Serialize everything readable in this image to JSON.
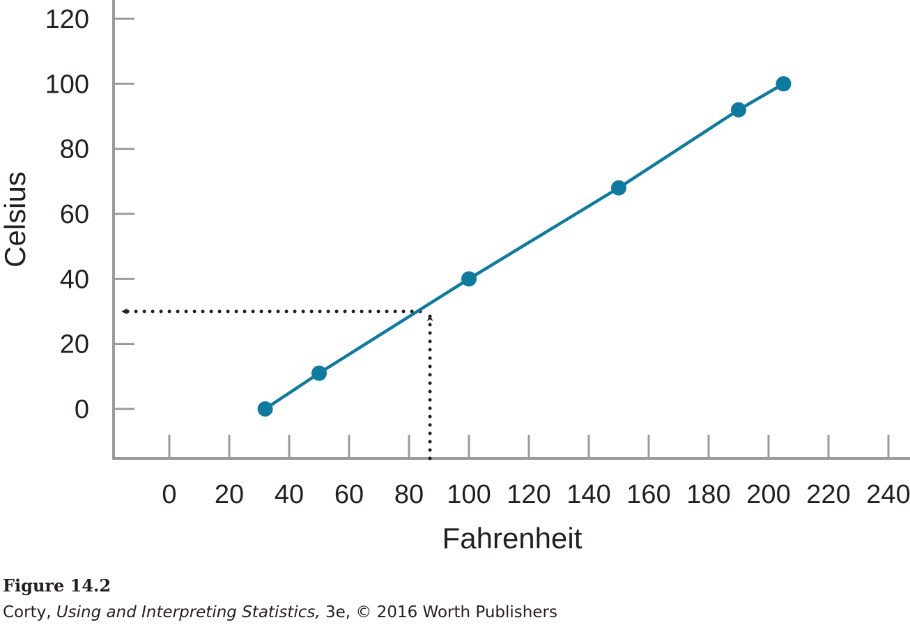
{
  "chart_data": {
    "type": "line",
    "xlabel": "Fahrenheit",
    "ylabel": "Celsius",
    "x_ticks": [
      0,
      20,
      40,
      60,
      80,
      100,
      120,
      140,
      160,
      180,
      200,
      220,
      240
    ],
    "y_ticks": [
      0,
      20,
      40,
      60,
      80,
      100,
      120
    ],
    "xlim": [
      -20,
      245
    ],
    "ylim": [
      -15,
      125
    ],
    "series": [
      {
        "x": [
          32,
          50,
          100,
          150,
          190,
          205
        ],
        "y": [
          0,
          11,
          40,
          68,
          92,
          100
        ],
        "color": "#0e7a9e",
        "markers": true
      }
    ],
    "annotation": {
      "type": "dotted-arrow-readout",
      "x_value": 87,
      "y_value": 30,
      "color": "#231f20"
    },
    "grid": false,
    "axis_color": "#9b9b9b"
  },
  "figure": {
    "title": "Figure 14.2",
    "credit_author": "Corty, ",
    "credit_book": "Using and Interpreting Statistics,",
    "credit_rest": " 3e, © 2016 Worth Publishers"
  }
}
